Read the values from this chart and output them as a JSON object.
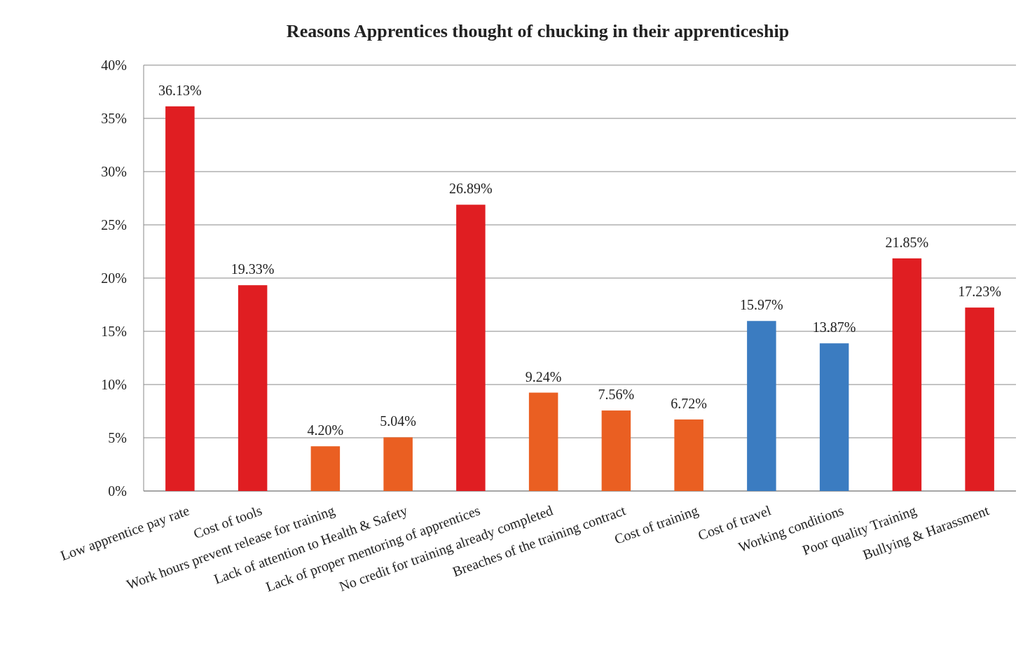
{
  "chart_data": {
    "type": "bar",
    "title": "Reasons Apprentices thought of chucking in their apprenticeship",
    "categories": [
      "Low apprentice pay rate",
      "Cost of tools",
      "Work hours prevent release for training",
      "Lack of attention to Health & Safety",
      "Lack of proper mentoring of apprentices",
      "No credit for training already completed",
      "Breaches of the training contract",
      "Cost of training",
      "Cost of travel",
      "Working conditions",
      "Poor quality Training",
      "Bullying & Harassment"
    ],
    "values": [
      36.13,
      19.33,
      4.2,
      5.04,
      26.89,
      9.24,
      7.56,
      6.72,
      15.97,
      13.87,
      21.85,
      17.23
    ],
    "colors": [
      "#e01e22",
      "#e01e22",
      "#ea5f22",
      "#ea5f22",
      "#e01e22",
      "#ea5f22",
      "#ea5f22",
      "#ea5f22",
      "#3b7cc1",
      "#3b7cc1",
      "#e01e22",
      "#e01e22"
    ],
    "value_labels": [
      "36.13%",
      "19.33%",
      "4.20%",
      "5.04%",
      "26.89%",
      "9.24%",
      "7.56%",
      "6.72%",
      "15.97%",
      "13.87%",
      "21.85%",
      "17.23%"
    ],
    "ylim": [
      0,
      40
    ],
    "yticks": [
      {
        "value": 0,
        "label": "0%"
      },
      {
        "value": 5,
        "label": "5%"
      },
      {
        "value": 10,
        "label": "10%"
      },
      {
        "value": 15,
        "label": "15%"
      },
      {
        "value": 20,
        "label": "20%"
      },
      {
        "value": 25,
        "label": "25%"
      },
      {
        "value": 30,
        "label": "30%"
      },
      {
        "value": 35,
        "label": "35%"
      },
      {
        "value": 40,
        "label": "40%"
      }
    ],
    "grid": "y"
  }
}
